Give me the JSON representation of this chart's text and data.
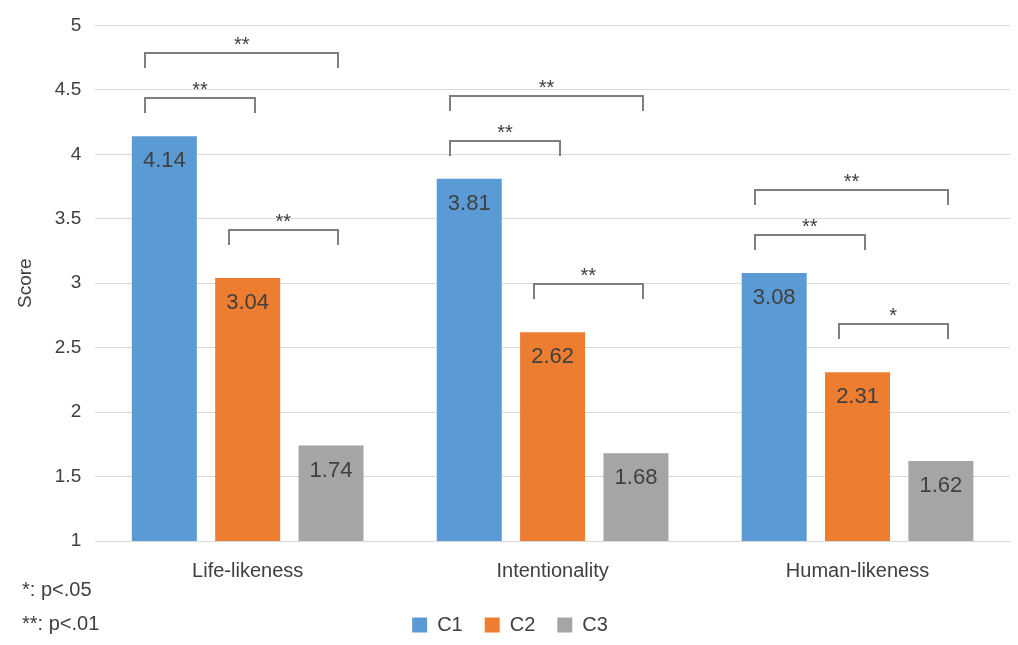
{
  "chart_data": {
    "type": "bar",
    "ylabel": "Score",
    "categories": [
      "Life-likeness",
      "Intentionality",
      "Human-likeness"
    ],
    "series": [
      {
        "name": "C1",
        "color": "#5b9bd5",
        "values": [
          4.14,
          3.81,
          3.08
        ]
      },
      {
        "name": "C2",
        "color": "#ed7d31",
        "values": [
          3.04,
          2.62,
          2.31
        ]
      },
      {
        "name": "C3",
        "color": "#a5a5a5",
        "values": [
          1.74,
          1.68,
          1.62
        ]
      }
    ],
    "ylim": [
      1,
      5
    ],
    "yticks": [
      1,
      1.5,
      2,
      2.5,
      3,
      3.5,
      4,
      4.5,
      5
    ],
    "grid": "y",
    "legend": "bottom",
    "data_labels": true,
    "annotations": [
      "**",
      "**",
      "**",
      "**",
      "**",
      "**",
      "**",
      "**",
      "*",
      "*: p<.05",
      "**: p<.01"
    ]
  }
}
